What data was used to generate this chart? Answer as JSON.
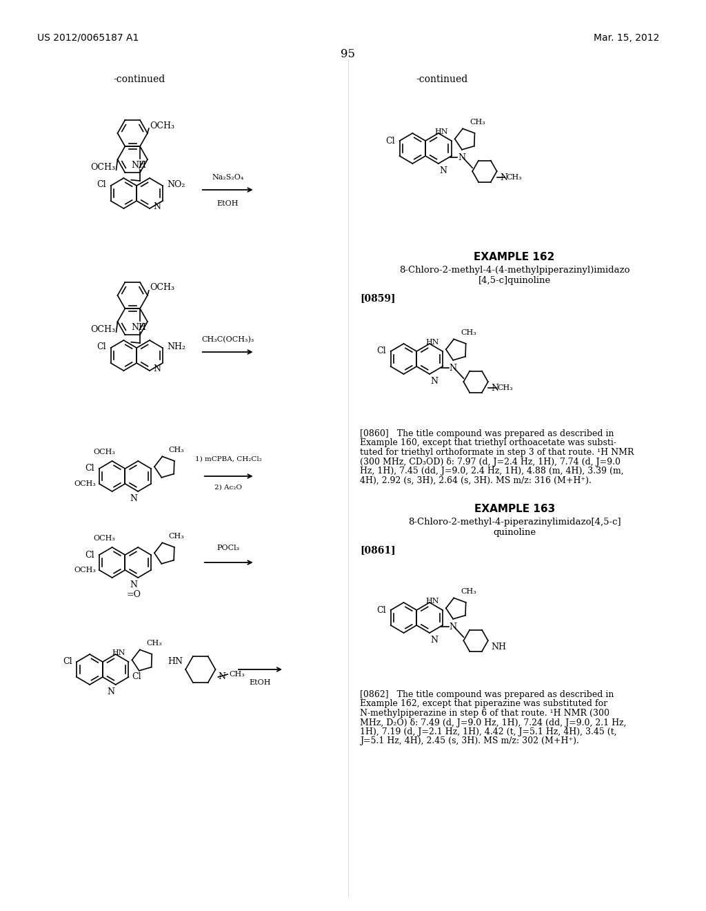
{
  "page_number": "95",
  "patent_number": "US 2012/0065187 A1",
  "date": "Mar. 15, 2012",
  "background_color": "#ffffff",
  "text_color": "#000000",
  "left_continued_label": "-continued",
  "right_continued_label": "-continued",
  "example162_title": "EXAMPLE 162",
  "example162_name_line1": "8-Chloro-2-methyl-4-(4-methylpiperazinyl)imidazo",
  "example162_name_line2": "[4,5-c]quinoline",
  "example163_title": "EXAMPLE 163",
  "example163_name_line1": "8-Chloro-2-methyl-4-piperazinylimidazo[4,5-c]",
  "example163_name_line2": "quinoline",
  "para0859": "[0859]",
  "para0860_line1": "[0860]   The title compound was prepared as described in",
  "para0860_line2": "Example 160, except that triethyl orthoacetate was substi-",
  "para0860_line3": "tuted for triethyl orthoformate in step 3 of that route. ¹H NMR",
  "para0860_line4": "(300 MHz, CD₃OD) δ: 7.97 (d, J=2.4 Hz, 1H), 7.74 (d, J=9.0",
  "para0860_line5": "Hz, 1H), 7.45 (dd, J=9.0, 2.4 Hz, 1H), 4.88 (m, 4H), 3.39 (m,",
  "para0860_line6": "4H), 2.92 (s, 3H), 2.64 (s, 3H). MS m/z: 316 (M+H⁺).",
  "para0861": "[0861]",
  "para0862_line1": "[0862]   The title compound was prepared as described in",
  "para0862_line2": "Example 162, except that piperazine was substituted for",
  "para0862_line3": "N-methylpiperazine in step 6 of that route. ¹H NMR (300",
  "para0862_line4": "MHz, D₂O) δ: 7.49 (d, J=9.0 Hz, 1H), 7.24 (dd, J=9.0, 2.1 Hz,",
  "para0862_line5": "1H), 7.19 (d, J=2.1 Hz, 1H), 4.42 (t, J=5.1 Hz, 4H), 3.45 (t,",
  "para0862_line6": "J=5.1 Hz, 4H), 2.45 (s, 3H). MS m/z: 302 (M+H⁺)."
}
